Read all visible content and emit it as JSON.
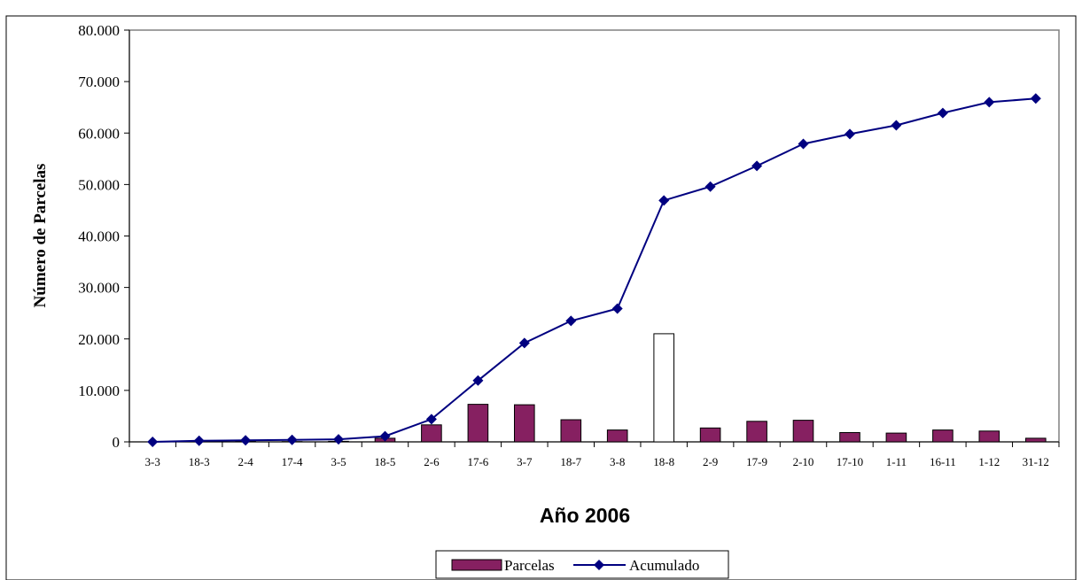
{
  "chart_data": {
    "type": "bar",
    "title": "",
    "xlabel": "Año 2006",
    "ylabel": "Número de Parcelas",
    "ylim": [
      0,
      80000
    ],
    "yticks": [
      0,
      10000,
      20000,
      30000,
      40000,
      50000,
      60000,
      70000,
      80000
    ],
    "ytick_labels": [
      "0",
      "10.000",
      "20.000",
      "30.000",
      "40.000",
      "50.000",
      "60.000",
      "70.000",
      "80.000"
    ],
    "categories": [
      "3-3",
      "18-3",
      "2-4",
      "17-4",
      "3-5",
      "18-5",
      "2-6",
      "17-6",
      "3-7",
      "18-7",
      "3-8",
      "18-8",
      "2-9",
      "17-9",
      "2-10",
      "17-10",
      "1-11",
      "16-11",
      "1-12",
      "31-12"
    ],
    "grid": false,
    "legend": "bottom-center",
    "series": [
      {
        "name": "Parcelas",
        "type": "bar",
        "color": "#862061",
        "highlight_index": 11,
        "highlight_color": "#ffffff",
        "values": [
          0,
          150,
          100,
          50,
          100,
          700,
          3300,
          7300,
          7200,
          4300,
          2300,
          21000,
          2700,
          4000,
          4200,
          1800,
          1700,
          2300,
          2100,
          700
        ]
      },
      {
        "name": "Acumulado",
        "type": "line",
        "color": "#000080",
        "values": [
          0,
          200,
          300,
          400,
          500,
          1100,
          4400,
          11900,
          19200,
          23500,
          25900,
          46900,
          49600,
          53600,
          57900,
          59800,
          61500,
          63900,
          66000,
          66700
        ]
      }
    ]
  }
}
